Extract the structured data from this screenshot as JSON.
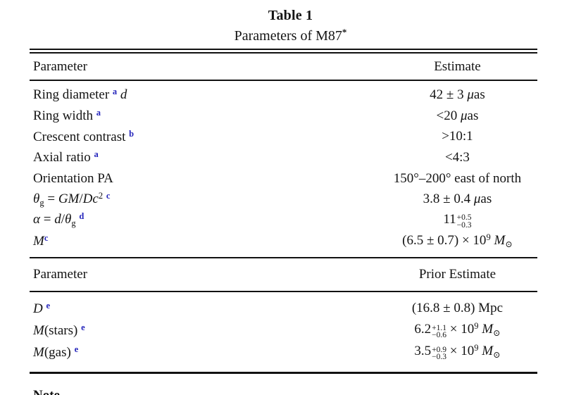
{
  "title": {
    "line1": "Table 1",
    "line2": "Parameters of M87",
    "line2_sup": "*"
  },
  "colors": {
    "footnote_blue": "#2525bb",
    "text": "#141414",
    "rule": "#111111"
  },
  "sections": [
    {
      "header": {
        "param": "Parameter",
        "value": "Estimate"
      },
      "rows": [
        {
          "param": [
            {
              "t": "r",
              "v": "Ring diameter "
            },
            {
              "t": "b",
              "v": "a"
            },
            {
              "t": "r",
              "v": " "
            },
            {
              "t": "i",
              "v": "d"
            }
          ],
          "value": [
            {
              "t": "r",
              "v": "42 ± 3 "
            },
            {
              "t": "i",
              "v": "μ"
            },
            {
              "t": "r",
              "v": "as"
            }
          ]
        },
        {
          "param": [
            {
              "t": "r",
              "v": "Ring width "
            },
            {
              "t": "b",
              "v": "a"
            }
          ],
          "value": [
            {
              "t": "r",
              "v": "<20 "
            },
            {
              "t": "i",
              "v": "μ"
            },
            {
              "t": "r",
              "v": "as"
            }
          ]
        },
        {
          "param": [
            {
              "t": "r",
              "v": "Crescent contrast "
            },
            {
              "t": "b",
              "v": "b"
            }
          ],
          "value": [
            {
              "t": "r",
              "v": ">10:1"
            }
          ]
        },
        {
          "param": [
            {
              "t": "r",
              "v": "Axial ratio "
            },
            {
              "t": "b",
              "v": "a"
            }
          ],
          "value": [
            {
              "t": "r",
              "v": "<4:3"
            }
          ]
        },
        {
          "param": [
            {
              "t": "r",
              "v": "Orientation PA"
            }
          ],
          "value": [
            {
              "t": "r",
              "v": "150°–200° east of north"
            }
          ]
        },
        {
          "param": [
            {
              "t": "i",
              "v": "θ"
            },
            {
              "t": "d",
              "v": "g"
            },
            {
              "t": "r",
              "v": " = "
            },
            {
              "t": "i",
              "v": "GM"
            },
            {
              "t": "r",
              "v": "/"
            },
            {
              "t": "i",
              "v": "Dc"
            },
            {
              "t": "s",
              "v": "2"
            },
            {
              "t": "r",
              "v": " "
            },
            {
              "t": "b",
              "v": "c"
            }
          ],
          "value": [
            {
              "t": "r",
              "v": "3.8 ± 0.4 "
            },
            {
              "t": "i",
              "v": "μ"
            },
            {
              "t": "r",
              "v": "as"
            }
          ]
        },
        {
          "param": [
            {
              "t": "i",
              "v": "α"
            },
            {
              "t": "r",
              "v": " = "
            },
            {
              "t": "i",
              "v": "d"
            },
            {
              "t": "r",
              "v": "/"
            },
            {
              "t": "i",
              "v": "θ"
            },
            {
              "t": "d",
              "v": "g"
            },
            {
              "t": "r",
              "v": " "
            },
            {
              "t": "b",
              "v": "d"
            }
          ],
          "value": [
            {
              "t": "r",
              "v": "11"
            },
            {
              "t": "k",
              "up": "+0.5",
              "dn": "−0.3"
            }
          ]
        },
        {
          "param": [
            {
              "t": "i",
              "v": "M"
            },
            {
              "t": "b",
              "v": "c"
            }
          ],
          "value": [
            {
              "t": "r",
              "v": "(6.5 ± 0.7) × 10"
            },
            {
              "t": "s",
              "v": "9"
            },
            {
              "t": "r",
              "v": " "
            },
            {
              "t": "i",
              "v": "M"
            },
            {
              "t": "d",
              "v": "⊙"
            }
          ]
        }
      ]
    },
    {
      "header": {
        "param": "Parameter",
        "value": "Prior Estimate"
      },
      "rows": [
        {
          "param": [
            {
              "t": "i",
              "v": "D"
            },
            {
              "t": "r",
              "v": " "
            },
            {
              "t": "b",
              "v": "e"
            }
          ],
          "value": [
            {
              "t": "r",
              "v": "(16.8 ± 0.8) Mpc"
            }
          ]
        },
        {
          "param": [
            {
              "t": "i",
              "v": "M"
            },
            {
              "t": "r",
              "v": "(stars) "
            },
            {
              "t": "b",
              "v": "e"
            }
          ],
          "value": [
            {
              "t": "r",
              "v": "6.2"
            },
            {
              "t": "k",
              "up": "+1.1",
              "dn": "−0.6"
            },
            {
              "t": "r",
              "v": " × 10"
            },
            {
              "t": "s",
              "v": "9"
            },
            {
              "t": "r",
              "v": " "
            },
            {
              "t": "i",
              "v": "M"
            },
            {
              "t": "d",
              "v": "⊙"
            }
          ]
        },
        {
          "param": [
            {
              "t": "i",
              "v": "M"
            },
            {
              "t": "r",
              "v": "(gas) "
            },
            {
              "t": "b",
              "v": "e"
            }
          ],
          "value": [
            {
              "t": "r",
              "v": "3.5"
            },
            {
              "t": "k",
              "up": "+0.9",
              "dn": "−0.3"
            },
            {
              "t": "r",
              "v": " × 10"
            },
            {
              "t": "s",
              "v": "9"
            },
            {
              "t": "r",
              "v": " "
            },
            {
              "t": "i",
              "v": "M"
            },
            {
              "t": "d",
              "v": "⊙"
            }
          ]
        }
      ]
    }
  ],
  "footer": {
    "note_label": "Note"
  }
}
